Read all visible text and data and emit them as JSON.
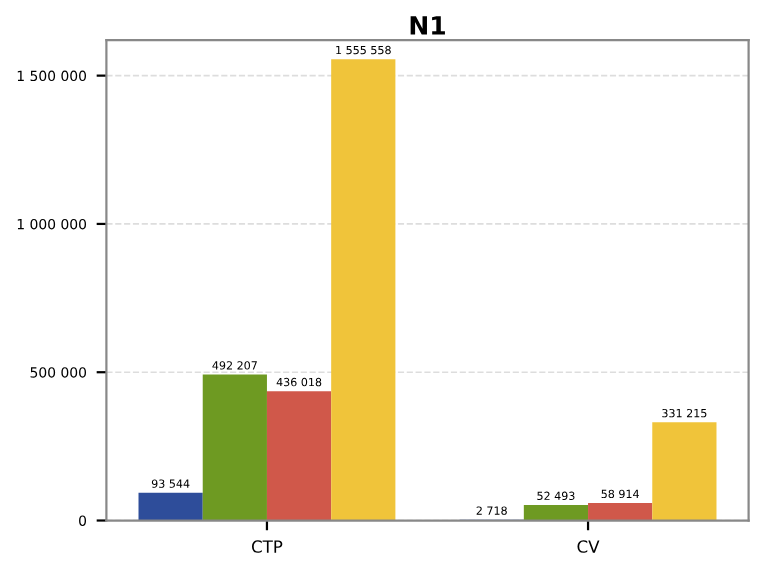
{
  "chart_data": {
    "type": "bar",
    "title": "N1",
    "categories": [
      "CTP",
      "CV"
    ],
    "series": [
      {
        "color": "#2e4d9a",
        "values": [
          93544,
          2718
        ],
        "value_labels": [
          "93 544",
          "2 718"
        ]
      },
      {
        "color": "#6e9a22",
        "values": [
          492207,
          52493
        ],
        "value_labels": [
          "492 207",
          "52 493"
        ]
      },
      {
        "color": "#d0584a",
        "values": [
          436018,
          58914
        ],
        "value_labels": [
          "436 018",
          "58 914"
        ]
      },
      {
        "color": "#f0c43a",
        "values": [
          1555558,
          331215
        ],
        "value_labels": [
          "1 555 558",
          "331 215"
        ]
      }
    ],
    "ylim": [
      0,
      1620000
    ],
    "yticks": [
      {
        "value": 0,
        "label": "0"
      },
      {
        "value": 500000,
        "label": "500 000"
      },
      {
        "value": 1000000,
        "label": "1 000 000"
      },
      {
        "value": 1500000,
        "label": "1 500 000"
      }
    ],
    "grid": "y",
    "legend": false
  }
}
